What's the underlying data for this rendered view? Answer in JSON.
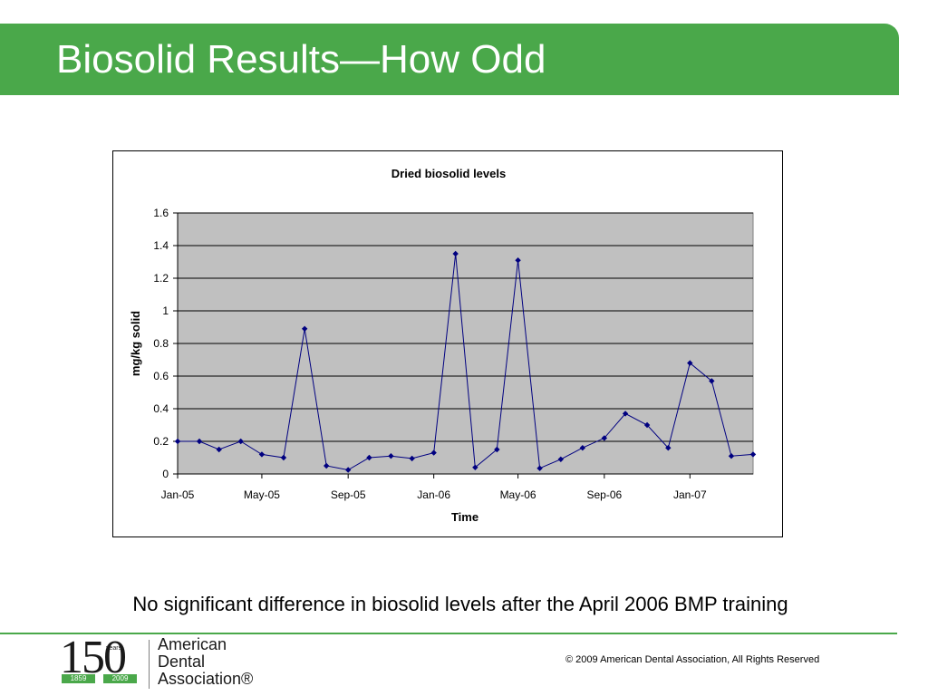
{
  "slide": {
    "title": "Biosolid Results—How Odd",
    "caption": "No significant difference in biosolid levels after the April 2006 BMP training",
    "copyright": "©  2009 American Dental Association,  All Rights Reserved"
  },
  "logo": {
    "number": "150",
    "years_label": "years",
    "start_year": "1859",
    "end_year": "2009",
    "org_line1": "American",
    "org_line2": "Dental",
    "org_line3": "Association®"
  },
  "chart_data": {
    "type": "line",
    "title": "Dried biosolid levels",
    "xlabel": "Time",
    "ylabel": "mg/kg solid",
    "ylim": [
      0,
      1.6
    ],
    "yticks": [
      "0",
      "0.2",
      "0.4",
      "0.6",
      "0.8",
      "1",
      "1.2",
      "1.4",
      "1.6"
    ],
    "xlim": [
      "2005-01-01",
      "2007-04-01"
    ],
    "xticks": [
      {
        "date": "2005-01-01",
        "label": "Jan-05"
      },
      {
        "date": "2005-05-01",
        "label": "May-05"
      },
      {
        "date": "2005-09-01",
        "label": "Sep-05"
      },
      {
        "date": "2006-01-01",
        "label": "Jan-06"
      },
      {
        "date": "2006-05-01",
        "label": "May-06"
      },
      {
        "date": "2006-09-01",
        "label": "Sep-06"
      },
      {
        "date": "2007-01-01",
        "label": "Jan-07"
      }
    ],
    "grid": true,
    "plot_background": "#c0c0c0",
    "series_color": "#000080",
    "series": [
      {
        "points": [
          {
            "x": "2005-01-01",
            "y": 0.2
          },
          {
            "x": "2005-02-01",
            "y": 0.2
          },
          {
            "x": "2005-03-01",
            "y": 0.15
          },
          {
            "x": "2005-04-01",
            "y": 0.2
          },
          {
            "x": "2005-05-01",
            "y": 0.12
          },
          {
            "x": "2005-06-01",
            "y": 0.1
          },
          {
            "x": "2005-07-01",
            "y": 0.89
          },
          {
            "x": "2005-08-01",
            "y": 0.05
          },
          {
            "x": "2005-09-01",
            "y": 0.025
          },
          {
            "x": "2005-10-01",
            "y": 0.1
          },
          {
            "x": "2005-11-01",
            "y": 0.11
          },
          {
            "x": "2005-12-01",
            "y": 0.095
          },
          {
            "x": "2006-01-01",
            "y": 0.13
          },
          {
            "x": "2006-02-01",
            "y": 1.35
          },
          {
            "x": "2006-03-01",
            "y": 0.04
          },
          {
            "x": "2006-04-01",
            "y": 0.15
          },
          {
            "x": "2006-05-01",
            "y": 1.31
          },
          {
            "x": "2006-06-01",
            "y": 0.035
          },
          {
            "x": "2006-07-01",
            "y": 0.09
          },
          {
            "x": "2006-08-01",
            "y": 0.16
          },
          {
            "x": "2006-09-01",
            "y": 0.22
          },
          {
            "x": "2006-10-01",
            "y": 0.37
          },
          {
            "x": "2006-11-01",
            "y": 0.3
          },
          {
            "x": "2006-12-01",
            "y": 0.16
          },
          {
            "x": "2007-01-01",
            "y": 0.68
          },
          {
            "x": "2007-02-01",
            "y": 0.57
          },
          {
            "x": "2007-03-01",
            "y": 0.11
          },
          {
            "x": "2007-04-01",
            "y": 0.12
          }
        ]
      }
    ]
  }
}
